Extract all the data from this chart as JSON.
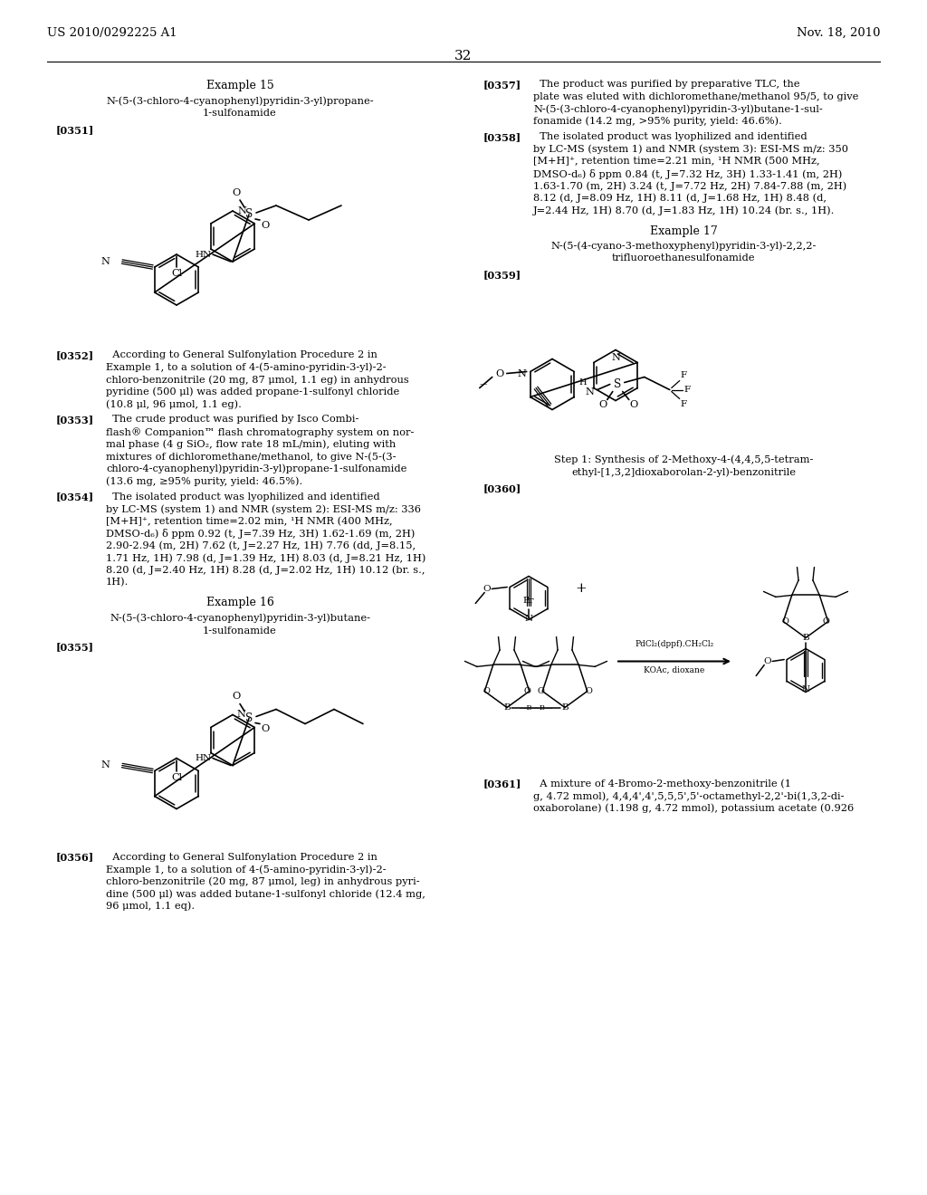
{
  "bg": "#ffffff",
  "pw": 10.24,
  "ph": 13.2,
  "dpi": 100,
  "header_left": "US 2010/0292225 A1",
  "header_right": "Nov. 18, 2010",
  "page_num": "32",
  "hfs": 9.5,
  "bfs": 8.2,
  "tfs": 9.0,
  "sfs": 7.5
}
